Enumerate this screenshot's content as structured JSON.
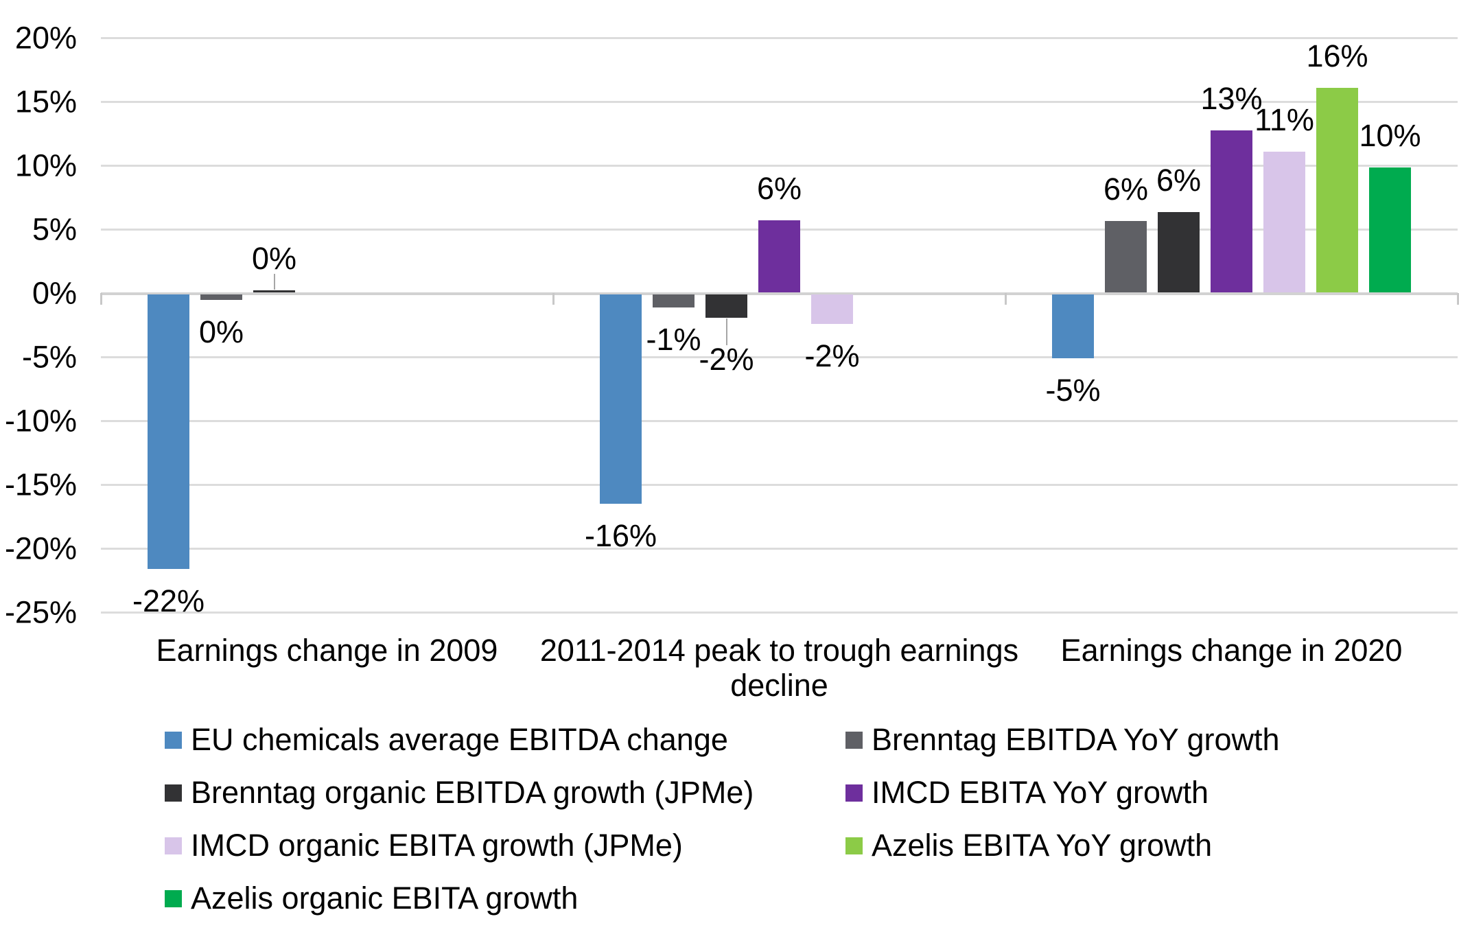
{
  "chart_data": {
    "type": "bar",
    "title": "",
    "xlabel": "",
    "ylabel": "",
    "ylim": [
      -25,
      20
    ],
    "grid": true,
    "legend_position": "bottom",
    "y_tick_labels": [
      "20%",
      "15%",
      "10%",
      "5%",
      "0%",
      "-5%",
      "-10%",
      "-15%",
      "-20%",
      "-25%"
    ],
    "y_tick_values": [
      20,
      15,
      10,
      5,
      0,
      -5,
      -10,
      -15,
      -20,
      -25
    ],
    "categories": [
      "Earnings change in 2009",
      "2011-2014 peak to trough earnings decline",
      "Earnings change in 2020"
    ],
    "category_label_lines": [
      [
        "Earnings change in 2009"
      ],
      [
        "2011-2014 peak to trough earnings",
        "decline"
      ],
      [
        "Earnings change in 2020"
      ]
    ],
    "series": [
      {
        "name": "EU chemicals average EBITDA change",
        "color": "#4E89C0",
        "values": [
          -22,
          -16,
          -5
        ],
        "labels": [
          "-22%",
          "-16%",
          "-5%"
        ],
        "display": [
          -21.5,
          -16.4,
          -5.0
        ],
        "leaders": [
          false,
          false,
          false
        ]
      },
      {
        "name": "Brenntag EBITDA YoY growth",
        "color": "#5F6065",
        "values": [
          0,
          -1,
          6
        ],
        "labels": [
          "0%",
          "-1%",
          "6%"
        ],
        "display": [
          -0.45,
          -1.0,
          5.6
        ],
        "leaders": [
          false,
          false,
          false
        ]
      },
      {
        "name": "Brenntag organic EBITDA growth (JPMe)",
        "color": "#323234",
        "values": [
          0,
          -2,
          6
        ],
        "labels": [
          "0%",
          "-2%",
          "6%"
        ],
        "display": [
          0.18,
          -1.85,
          6.3
        ],
        "leaders": [
          true,
          true,
          false
        ]
      },
      {
        "name": "IMCD EBITA YoY growth",
        "color": "#6E2F9D",
        "values": [
          null,
          6,
          13
        ],
        "labels": [
          null,
          "6%",
          "13%"
        ],
        "display": [
          null,
          5.65,
          12.7
        ],
        "leaders": [
          false,
          false,
          false
        ]
      },
      {
        "name": "IMCD organic EBITA growth (JPMe)",
        "color": "#D8C5E9",
        "values": [
          null,
          -2,
          11
        ],
        "labels": [
          null,
          "-2%",
          "11%"
        ],
        "display": [
          null,
          -2.3,
          11.0
        ],
        "leaders": [
          false,
          false,
          false
        ]
      },
      {
        "name": "Azelis EBITA YoY growth",
        "color": "#8CCB47",
        "values": [
          null,
          null,
          16
        ],
        "labels": [
          null,
          null,
          "16%"
        ],
        "display": [
          null,
          null,
          16.0
        ],
        "leaders": [
          false,
          false,
          false
        ]
      },
      {
        "name": "Azelis organic EBITA growth",
        "color": "#00AB4F",
        "values": [
          null,
          null,
          10
        ],
        "labels": [
          null,
          null,
          "10%"
        ],
        "display": [
          null,
          null,
          9.8
        ],
        "leaders": [
          false,
          false,
          false
        ]
      }
    ],
    "legend": {
      "columns": [
        [
          0,
          2,
          4,
          6
        ],
        [
          1,
          3,
          5
        ]
      ]
    },
    "colors": {
      "gridline": "#dcdcdc",
      "axis_line": "#d2d2d2",
      "tick": "#c8c8c8",
      "leader_line": "#a6a6a6",
      "text": "#000000",
      "background": "#ffffff"
    }
  }
}
